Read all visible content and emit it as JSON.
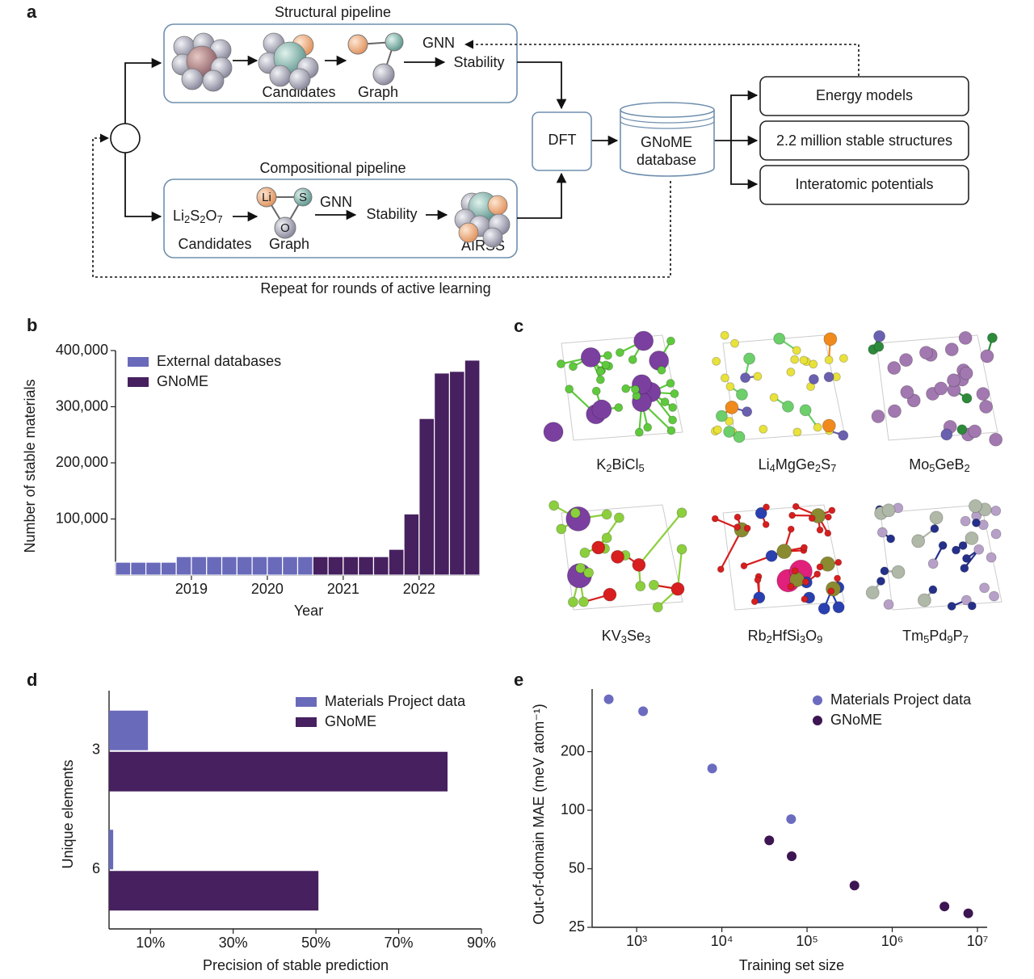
{
  "panel_labels": [
    "a",
    "b",
    "c",
    "d",
    "e"
  ],
  "diagram": {
    "structural": {
      "title": "Structural pipeline",
      "candidates": "Candidates",
      "graph": "Graph",
      "gnn": "GNN",
      "stability": "Stability"
    },
    "compositional": {
      "title": "Compositional pipeline",
      "formula": [
        "Li",
        "2",
        "S",
        "2",
        "O",
        "7"
      ],
      "atoms": [
        "Li",
        "S",
        "O"
      ],
      "gnn": "GNN",
      "stability": "Stability",
      "candidates": "Candidates",
      "graph": "Graph",
      "airss": "AIRSS"
    },
    "dft": "DFT",
    "database": [
      "GNoME",
      "database"
    ],
    "outputs": [
      "Energy models",
      "2.2 million stable structures",
      "Interatomic potentials"
    ],
    "loop": "Repeat for rounds of active learning"
  },
  "structures": {
    "formulas": [
      [
        "K",
        "2",
        "BiCl",
        "5"
      ],
      [
        "Li",
        "4",
        "MgGe",
        "2",
        "S",
        "7"
      ],
      [
        "Mo",
        "5",
        "GeB",
        "2"
      ],
      [
        "KV",
        "3",
        "Se",
        "3"
      ],
      [
        "Rb",
        "2",
        "HfSi",
        "3",
        "O",
        "9"
      ],
      [
        "Tm",
        "5",
        "Pd",
        "9",
        "P",
        "7"
      ]
    ]
  },
  "chart_data": [
    {
      "type": "histogram",
      "xlabel": "Year",
      "ylabel": "Number of stable materials",
      "bins": [
        2018,
        2018.2,
        2018.4,
        2018.6,
        2018.8,
        2019,
        2019.2,
        2019.4,
        2019.6,
        2019.8,
        2020,
        2020.2,
        2020.4,
        2020.6,
        2020.8,
        2021,
        2021.2,
        2021.4,
        2021.6,
        2021.8,
        2022,
        2022.2,
        2022.4,
        2022.6,
        2022.8
      ],
      "series": [
        {
          "name": "External databases",
          "color": "#6a6abb",
          "values": [
            23000,
            23000,
            23000,
            23000,
            33000,
            33000,
            33000,
            33000,
            33000,
            33000,
            33000,
            33000,
            33000,
            null,
            null,
            null,
            null,
            null,
            null,
            null,
            null,
            null,
            null,
            null
          ]
        },
        {
          "name": "GNoME",
          "color": "#47205f",
          "values": [
            null,
            null,
            null,
            null,
            null,
            null,
            null,
            null,
            null,
            null,
            null,
            null,
            null,
            33000,
            33000,
            33000,
            33000,
            33000,
            46000,
            109000,
            279000,
            360000,
            363000,
            383000
          ]
        }
      ],
      "xlim": [
        2018,
        2022.8
      ],
      "xticks": [
        2019,
        2020,
        2021,
        2022
      ],
      "ylim": [
        0,
        400000
      ],
      "yticks": [
        {
          "value": 100000,
          "label": "100,000"
        },
        {
          "value": 200000,
          "label": "200,000"
        },
        {
          "value": 300000,
          "label": "300,000"
        },
        {
          "value": 400000,
          "label": "400,000"
        }
      ],
      "legend": "upper left"
    },
    {
      "type": "hbar",
      "xlabel": "Precision of stable prediction",
      "ylabel": "Unique elements",
      "categories": [
        "3",
        "6"
      ],
      "series": [
        {
          "name": "Materials Project data",
          "color": "#6a6abb",
          "values": [
            9.4,
            1
          ]
        },
        {
          "name": "GNoME",
          "color": "#47205f",
          "values": [
            81.8,
            50.6
          ]
        }
      ],
      "xlim": [
        0,
        90
      ],
      "xticks": [
        {
          "value": 10,
          "label": "10%"
        },
        {
          "value": 30,
          "label": "30%"
        },
        {
          "value": 50,
          "label": "50%"
        },
        {
          "value": 70,
          "label": "70%"
        },
        {
          "value": 90,
          "label": "90%"
        }
      ],
      "legend": "upper right"
    },
    {
      "type": "scatter",
      "xlabel": "Training set size",
      "ylabel": "Out-of-domain MAE (meV atom⁻¹)",
      "xscale": "log",
      "yscale": "log",
      "series": [
        {
          "name": "Materials Project data",
          "color": "#6b6bc0",
          "x": [
            470,
            1190,
            7700,
            65000
          ],
          "values": [
            372,
            323,
            164,
            90
          ]
        },
        {
          "name": "GNoME",
          "color": "#3d1552",
          "x": [
            36000,
            66000,
            360000,
            4100000,
            7800000
          ],
          "values": [
            70,
            58,
            41,
            32,
            29.5
          ]
        }
      ],
      "xlim": [
        300,
        13000000
      ],
      "xticks": [
        {
          "value": 1000,
          "label": "10³"
        },
        {
          "value": 10000,
          "label": "10⁴"
        },
        {
          "value": 100000,
          "label": "10⁵"
        },
        {
          "value": 1000000,
          "label": "10⁶"
        },
        {
          "value": 10000000,
          "label": "10⁷"
        }
      ],
      "ylim": [
        25,
        420
      ],
      "yticks": [
        25,
        50,
        100,
        200
      ],
      "legend": "upper right"
    }
  ]
}
